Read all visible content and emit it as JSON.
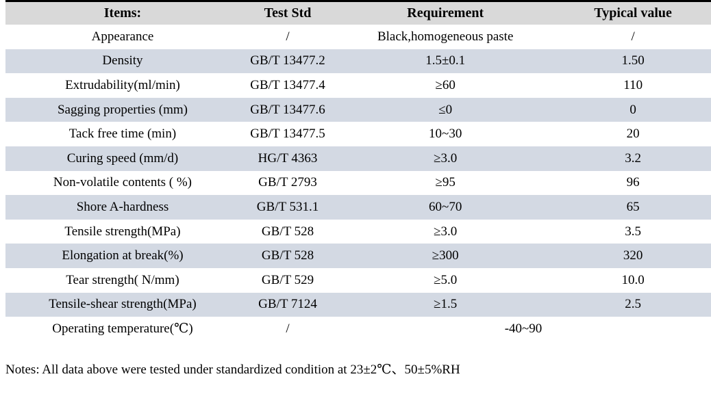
{
  "table": {
    "columns": {
      "items": "Items:",
      "test_std": "Test Std",
      "requirement": "Requirement",
      "typical_value": "Typical value"
    },
    "rows": [
      {
        "item": "Appearance",
        "std": "/",
        "req": "Black,homogeneous paste",
        "typ": "/"
      },
      {
        "item": "Density",
        "std": "GB/T 13477.2",
        "req": "1.5±0.1",
        "typ": "1.50"
      },
      {
        "item": "Extrudability(ml/min)",
        "std": "GB/T 13477.4",
        "req": "≥60",
        "typ": "110"
      },
      {
        "item": "Sagging properties (mm)",
        "std": "GB/T 13477.6",
        "req": "≤0",
        "typ": "0"
      },
      {
        "item": "Tack free time (min)",
        "std": "GB/T 13477.5",
        "req": "10~30",
        "typ": "20"
      },
      {
        "item": "Curing speed (mm/d)",
        "std": "HG/T 4363",
        "req": "≥3.0",
        "typ": "3.2"
      },
      {
        "item": "Non-volatile contents ( %)",
        "std": "GB/T 2793",
        "req": "≥95",
        "typ": "96"
      },
      {
        "item": "Shore A-hardness",
        "std": "GB/T 531.1",
        "req": "60~70",
        "typ": "65"
      },
      {
        "item": "Tensile strength(MPa)",
        "std": "GB/T 528",
        "req": "≥3.0",
        "typ": "3.5"
      },
      {
        "item": "Elongation at break(%)",
        "std": "GB/T 528",
        "req": "≥300",
        "typ": "320"
      },
      {
        "item": "Tear strength( N/mm)",
        "std": "GB/T 529",
        "req": "≥5.0",
        "typ": "10.0"
      },
      {
        "item": "Tensile-shear strength(MPa)",
        "std": "GB/T 7124",
        "req": "≥1.5",
        "typ": "2.5"
      },
      {
        "item": "Operating temperature(℃)",
        "std": "/",
        "req": "-40~90"
      }
    ]
  },
  "notes": "Notes: All data above were tested under standardized condition at 23±2℃、50±5%RH",
  "colors": {
    "header_bg": "#d9d9d9",
    "alt_row_bg": "#d3d9e3",
    "row_bg": "#ffffff",
    "top_border": "#000000",
    "text": "#000000"
  }
}
